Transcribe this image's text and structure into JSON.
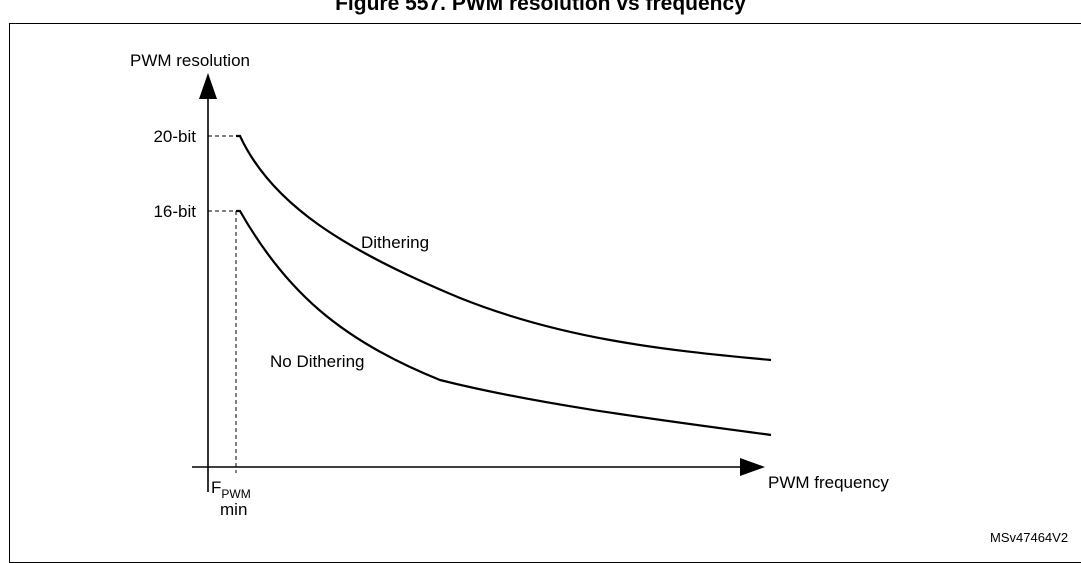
{
  "figure": {
    "title": "Figure 557. PWM resolution vs frequency",
    "reference": "MSv47464V2"
  },
  "axes": {
    "y_label": "PWM resolution",
    "x_label": "PWM frequency",
    "x_tick_main": "F",
    "x_tick_subscript": "PWM",
    "x_tick_suffix": "min"
  },
  "levels": {
    "high": "20-bit",
    "low": "16-bit"
  },
  "curves": {
    "upper": "Dithering",
    "lower": "No Dithering"
  }
}
